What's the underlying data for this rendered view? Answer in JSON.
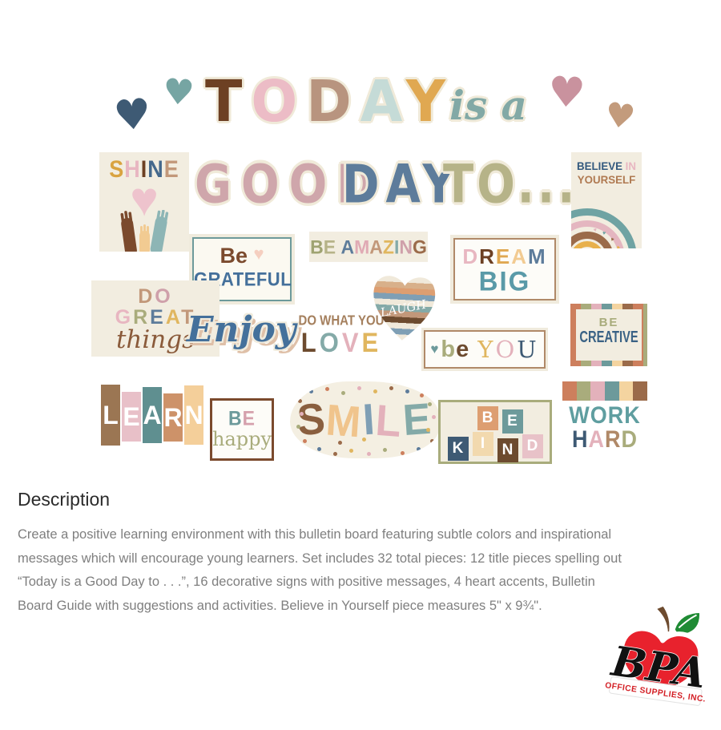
{
  "icons": {
    "heart": "♥"
  },
  "collage": {
    "hearts": {
      "blue": "#3e5a74",
      "teal": "#76a5a3",
      "pink": "#c9929e",
      "tan": "#c39b7c"
    },
    "title": {
      "today": [
        [
          "T",
          "#6d4023"
        ],
        [
          "O",
          "#ecbcc6"
        ],
        [
          "D",
          "#b8947f"
        ],
        [
          "A",
          "#c5dbd7"
        ],
        [
          "Y",
          "#e0a851"
        ]
      ],
      "is_a": "is a",
      "is_a_color": "#82a9a6",
      "good": "GOOD",
      "good_color": "#cfa6ab",
      "day": "DAY",
      "day_color": "#5d7c9b",
      "to": "TO...",
      "to_color": "#b6b388"
    },
    "signs": {
      "shine": {
        "letters": [
          [
            "S",
            "#d9a340"
          ],
          [
            "H",
            "#e8b6c1"
          ],
          [
            "I",
            "#6d4023"
          ],
          [
            "N",
            "#44688c"
          ],
          [
            "E",
            "#c2987a"
          ]
        ]
      },
      "believe": {
        "word1": "BELIEVE",
        "word2": "IN",
        "word3": "YOURSELF",
        "rainbow": [
          "#c9c28e",
          "#e8b04b",
          "#9b6b4a",
          "#e4b6c0",
          "#6fa3a3"
        ],
        "heart_colors": [
          "#e4b6c0",
          "#6fa3a3",
          "#9b6b4a",
          "#e8b04b",
          "#e4b6c0"
        ]
      },
      "be_grateful": {
        "be": "Be",
        "grateful": "GRATEFUL"
      },
      "be_amazing": {
        "letters": [
          [
            "B",
            "#9fa371"
          ],
          [
            "E",
            "#b6b388"
          ],
          [
            " ",
            ""
          ],
          [
            "A",
            "#5d7c9b"
          ],
          [
            "M",
            "#e0aab4"
          ],
          [
            "A",
            "#c2987a"
          ],
          [
            "Z",
            "#e0b65f"
          ],
          [
            "I",
            "#84aaa8"
          ],
          [
            "N",
            "#cfa0aa"
          ],
          [
            "G",
            "#9b6b4a"
          ]
        ]
      },
      "dream_big": {
        "dream": [
          [
            "D",
            "#e8b7c1"
          ],
          [
            "R",
            "#6d4023"
          ],
          [
            "E",
            "#e0a851"
          ],
          [
            "A",
            "#f2cb92"
          ],
          [
            "M",
            "#5d7c9b"
          ]
        ],
        "big": "BIG"
      },
      "do_great_things": {
        "do": [
          [
            "D",
            "#c2987a"
          ],
          [
            "O",
            "#cfa0aa"
          ]
        ],
        "great": [
          [
            "G",
            "#e8b6c1"
          ],
          [
            "R",
            "#a9ac7c"
          ],
          [
            "E",
            "#5d7c9b"
          ],
          [
            "A",
            "#e0b65f"
          ],
          [
            "T",
            "#c2987a"
          ]
        ],
        "things": "things"
      },
      "enjoy": {
        "text": "Enjoy"
      },
      "do_what_you_love": {
        "line1": "DO WHAT YOU",
        "love": [
          [
            "L",
            "#6d4b2f"
          ],
          [
            "O",
            "#84aaa8"
          ],
          [
            "V",
            "#e3b1bb"
          ],
          [
            "E",
            "#e0b65f"
          ]
        ]
      },
      "laugh": {
        "text": "LAUGH",
        "stripes": [
          "#f0e9da",
          "#d8b08a",
          "#dd9e71",
          "#7f9fb5",
          "#f0e9da",
          "#84aaa8",
          "#c2987a",
          "#6d4b2f",
          "#f0e9da",
          "#7f9fb5",
          "#f0e9da"
        ]
      },
      "be_you": {
        "be": [
          [
            "b",
            "#a9ac7c"
          ],
          [
            "e",
            "#6d4b2f"
          ]
        ],
        "you": [
          [
            "Y",
            "#e0b65f"
          ],
          [
            "O",
            "#e3b1bb"
          ],
          [
            "U",
            "#3e5a74"
          ]
        ],
        "heart_color": "#6d9a9b"
      },
      "be_creative": {
        "be": "BE",
        "creative": "CREATIVE",
        "border": [
          "#cd7f5d",
          "#a9ac7c",
          "#e3b1bb",
          "#6d9a9b",
          "#f4d4a0",
          "#9b6b4a"
        ]
      },
      "learn": {
        "blocks": [
          [
            "L",
            "#9b7653"
          ],
          [
            "E",
            "#e8c0c8"
          ],
          [
            "A",
            "#5f8f90"
          ],
          [
            "R",
            "#cd9269"
          ],
          [
            "N",
            "#f4cf9a"
          ]
        ]
      },
      "be_happy": {
        "be": [
          [
            "B",
            "#6d9a9b"
          ],
          [
            "E",
            "#d5a0ac"
          ]
        ],
        "happy": "happy"
      },
      "smile": {
        "letters": [
          [
            "S",
            "#8a5f3f"
          ],
          [
            "M",
            "#f0c48c"
          ],
          [
            "I",
            "#7f9fb5"
          ],
          [
            "L",
            "#e3b1bb"
          ],
          [
            "E",
            "#84aaa8"
          ]
        ],
        "dot_colors": [
          "#9b6b4a",
          "#5d7c9b",
          "#cd7f5d",
          "#a9ac7c",
          "#e3b1bb",
          "#e0b65f"
        ]
      },
      "be_kind": {
        "row1": [
          [
            "B",
            "#dd9e71"
          ],
          [
            "E",
            "#6d9a9b"
          ]
        ],
        "row2": [
          [
            "K",
            "#3e5a74"
          ],
          [
            "I",
            "#f2d9ae"
          ],
          [
            "N",
            "#6d4b2f"
          ],
          [
            "D",
            "#e8c2c8"
          ]
        ]
      },
      "work_hard": {
        "swatches": [
          "#cd7f5d",
          "#a9ac7c",
          "#e3b1bb",
          "#6d9a9b",
          "#f4d4a0",
          "#9b6b4a"
        ],
        "work": "WORK",
        "hard": [
          [
            "H",
            "#3e5a74"
          ],
          [
            "A",
            "#e3b1bb"
          ],
          [
            "R",
            "#b08968"
          ],
          [
            "D",
            "#a9ac7c"
          ]
        ]
      }
    }
  },
  "description": {
    "heading": "Description",
    "lines": [
      "Create a positive learning environment with this bulletin board featuring subtle colors and inspirational",
      "messages which will encourage young learners. Set includes 32 total pieces: 12 title pieces spelling out",
      "“Today is a Good Day to . . .”, 16 decorative signs with positive messages, 4 heart accents, Bulletin",
      "Board Guide with suggestions and activities. Believe in Yourself piece measures 5\" x 9¾\"."
    ]
  },
  "logo": {
    "brand": "BPA",
    "tagline": "OFFICE SUPPLIES, INC."
  }
}
